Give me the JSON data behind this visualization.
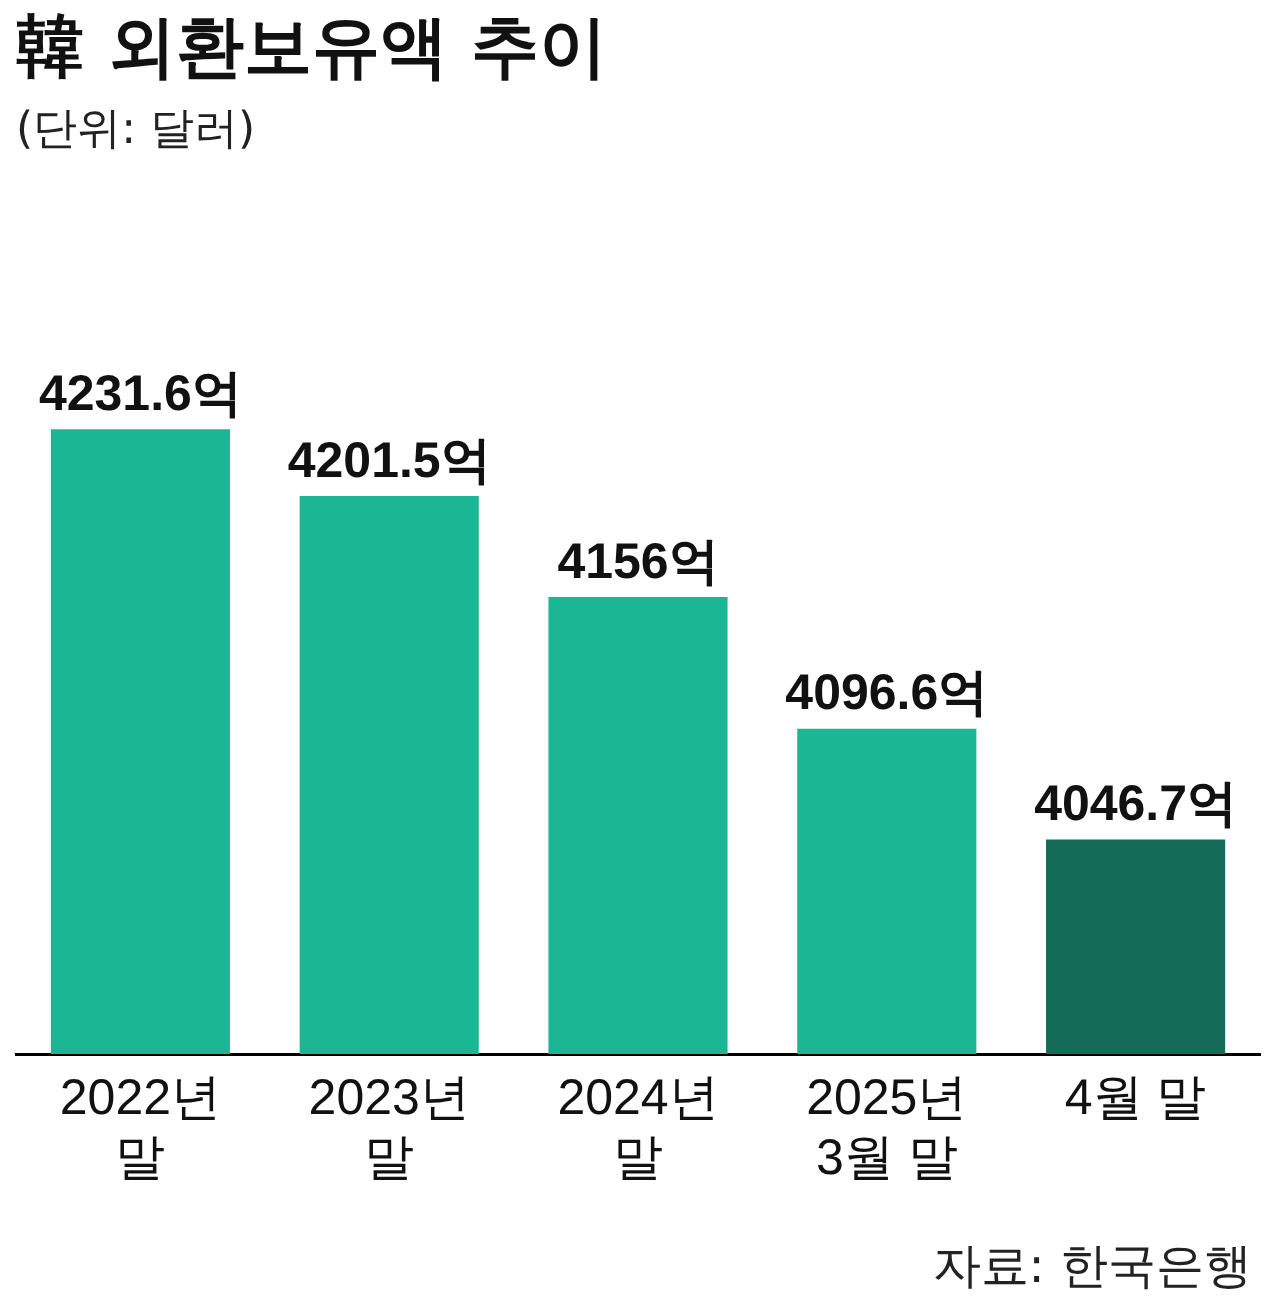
{
  "chart_data": {
    "type": "bar",
    "title": "韓 외환보유액 추이",
    "subtitle": "(단위: 달러)",
    "categories": [
      "2022년\n말",
      "2023년\n말",
      "2024년\n말",
      "2025년\n3월 말",
      "4월 말"
    ],
    "values": [
      4231.6,
      4201.5,
      4156,
      4096.6,
      4046.7
    ],
    "colors": [
      "#1bb794",
      "#1bb794",
      "#1bb794",
      "#1bb794",
      "#136b58"
    ],
    "value_labels": [
      "4231.6억",
      "4201.5억",
      "4156억",
      "4096.6억",
      "4046.7억"
    ],
    "tick_labels": "x",
    "grid": false,
    "legend": false,
    "annotations": [
      "자료: 한국은행"
    ]
  }
}
